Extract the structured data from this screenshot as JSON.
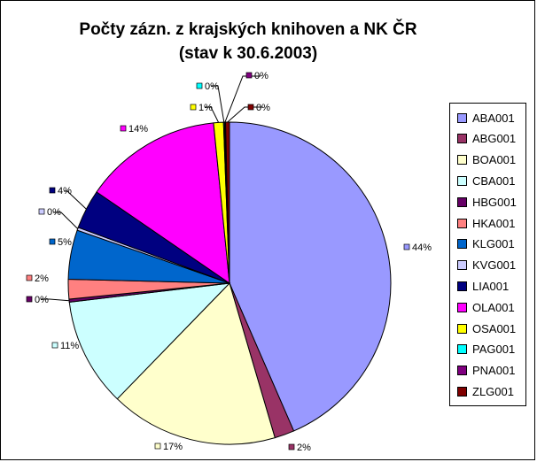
{
  "chart_data": {
    "type": "pie",
    "title": "Počty zázn. z krajských knihoven a NK ČR",
    "subtitle": "(stav k 30.6.2003)",
    "legend_position": "right",
    "categories": [
      "ABA001",
      "ABG001",
      "BOA001",
      "CBA001",
      "HBG001",
      "HKA001",
      "KLG001",
      "KVG001",
      "LIA001",
      "OLA001",
      "OSA001",
      "PAG001",
      "PNA001",
      "ZLG001"
    ],
    "values": [
      44,
      2,
      17,
      11,
      0.3,
      2,
      5,
      0.3,
      4,
      14,
      1,
      0.1,
      0.1,
      0.4
    ],
    "data_labels": [
      "44%",
      "2%",
      "17%",
      "11%",
      "0%",
      "2%",
      "5%",
      "0%",
      "4%",
      "14%",
      "1%",
      "0%",
      "0%",
      "0%"
    ],
    "colors": [
      "#9999ff",
      "#993366",
      "#ffffcc",
      "#ccffff",
      "#660066",
      "#ff8080",
      "#0066cc",
      "#ccccff",
      "#000080",
      "#ff00ff",
      "#ffff00",
      "#00ffff",
      "#800080",
      "#800000"
    ]
  }
}
